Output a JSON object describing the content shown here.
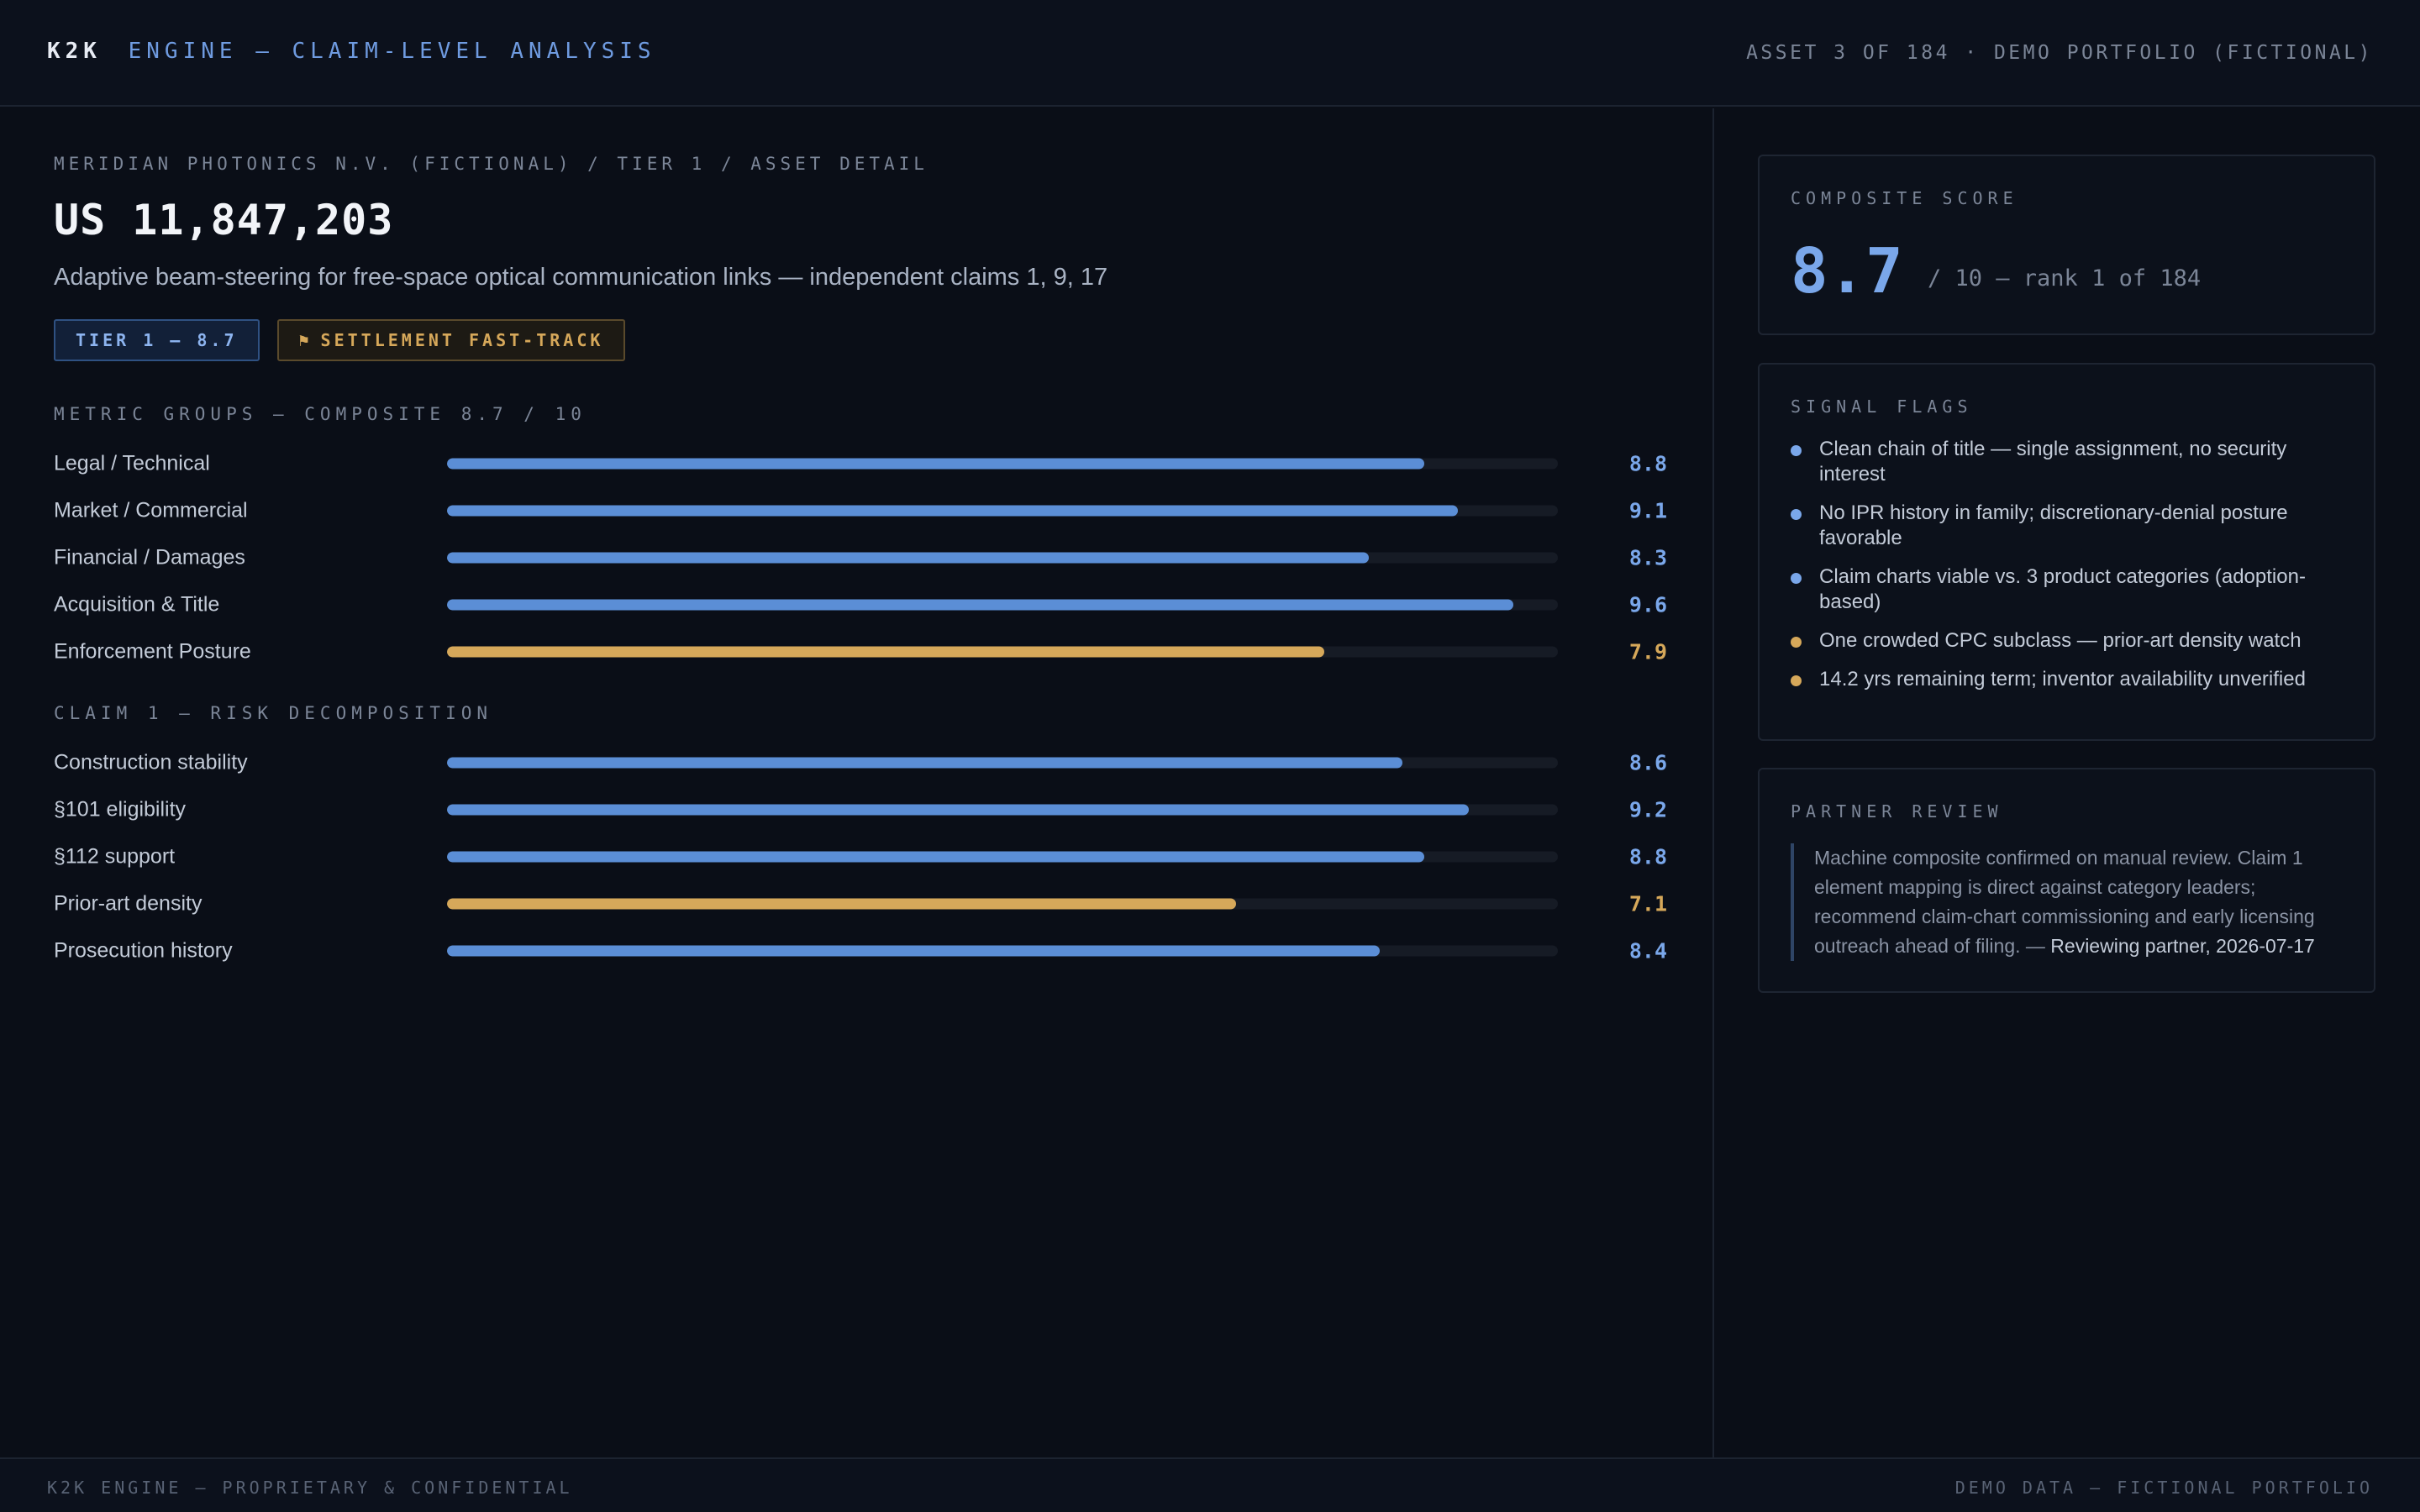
{
  "header": {
    "brand": "K2K",
    "title": "ENGINE — CLAIM-LEVEL ANALYSIS",
    "asset_meta": "ASSET 3 OF 184 · DEMO PORTFOLIO (FICTIONAL)"
  },
  "asset": {
    "breadcrumb": "MERIDIAN PHOTONICS N.V. (FICTIONAL) / TIER 1 / ASSET DETAIL",
    "patent_number": "US 11,847,203",
    "subtitle": "Adaptive beam-steering for free-space optical communication links — independent claims 1, 9, 17",
    "badges": {
      "tier": "TIER 1 — 8.7",
      "fast_track_icon": "⚑",
      "fast_track": "SETTLEMENT FAST-TRACK"
    }
  },
  "colors": {
    "accent_blue": "#5b8ed6",
    "accent_amber": "#d6a85a",
    "background": "#0a0e17"
  },
  "metric_groups": {
    "label": "METRIC GROUPS — COMPOSITE 8.7 / 10",
    "scale_max": 10,
    "items": [
      {
        "label": "Legal / Technical",
        "value": "8.8",
        "score": 8.8,
        "tone": "blue"
      },
      {
        "label": "Market / Commercial",
        "value": "9.1",
        "score": 9.1,
        "tone": "blue"
      },
      {
        "label": "Financial / Damages",
        "value": "8.3",
        "score": 8.3,
        "tone": "blue"
      },
      {
        "label": "Acquisition & Title",
        "value": "9.6",
        "score": 9.6,
        "tone": "blue"
      },
      {
        "label": "Enforcement Posture",
        "value": "7.9",
        "score": 7.9,
        "tone": "amber"
      }
    ]
  },
  "claim_risk": {
    "label": "CLAIM 1 — RISK DECOMPOSITION",
    "scale_max": 10,
    "items": [
      {
        "label": "Construction stability",
        "value": "8.6",
        "score": 8.6,
        "tone": "blue"
      },
      {
        "label": "§101 eligibility",
        "value": "9.2",
        "score": 9.2,
        "tone": "blue"
      },
      {
        "label": "§112 support",
        "value": "8.8",
        "score": 8.8,
        "tone": "blue"
      },
      {
        "label": "Prior-art density",
        "value": "7.1",
        "score": 7.1,
        "tone": "amber"
      },
      {
        "label": "Prosecution history",
        "value": "8.4",
        "score": 8.4,
        "tone": "blue"
      }
    ]
  },
  "composite": {
    "label": "COMPOSITE SCORE",
    "score": "8.7",
    "suffix": "/ 10 — rank 1 of 184"
  },
  "signal_flags": {
    "label": "SIGNAL FLAGS",
    "items": [
      {
        "text": "Clean chain of title — single assignment, no security interest",
        "tone": "blue"
      },
      {
        "text": "No IPR history in family; discretionary-denial posture favorable",
        "tone": "blue"
      },
      {
        "text": "Claim charts viable vs. 3 product categories (adoption-based)",
        "tone": "blue"
      },
      {
        "text": "One crowded CPC subclass — prior-art density watch",
        "tone": "amber"
      },
      {
        "text": "14.2 yrs remaining term; inventor availability unverified",
        "tone": "amber"
      }
    ]
  },
  "partner_review": {
    "label": "PARTNER REVIEW",
    "text": "Machine composite confirmed on manual review. Claim 1 element mapping is direct against category leaders; recommend claim-chart commissioning and early licensing outreach ahead of filing. — ",
    "attribution": "Reviewing partner, 2026-07-17"
  },
  "footer": {
    "left": "K2K ENGINE — PROPRIETARY & CONFIDENTIAL",
    "right": "DEMO DATA — FICTIONAL PORTFOLIO"
  }
}
